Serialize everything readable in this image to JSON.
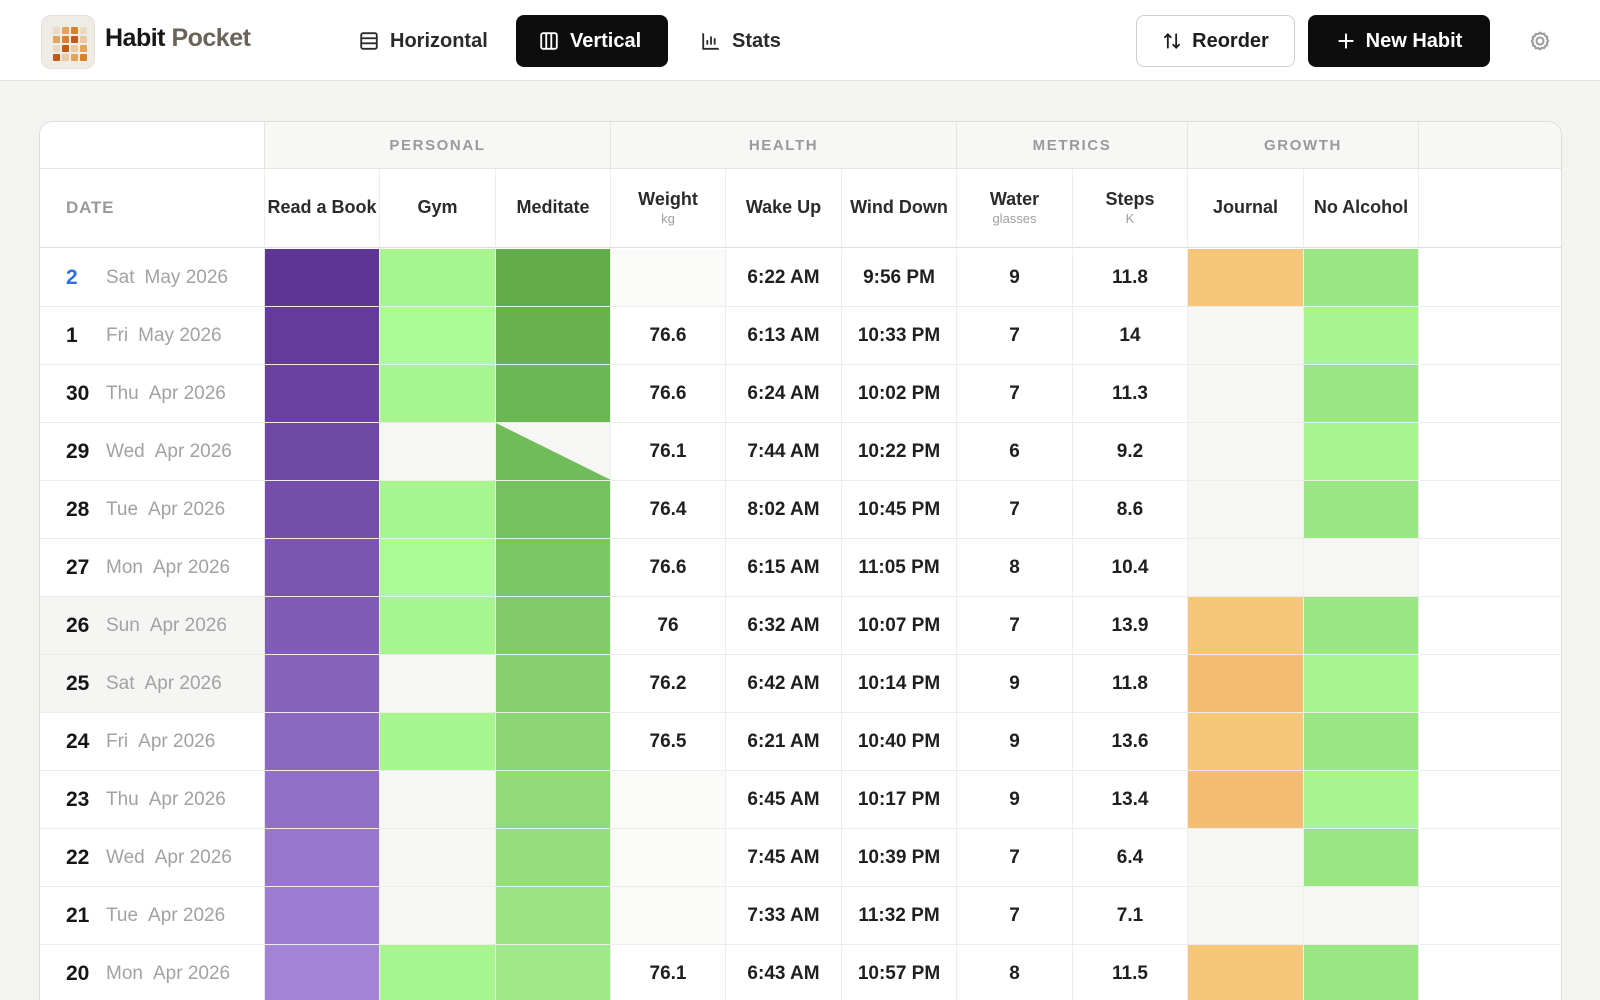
{
  "app": {
    "brand_main": "Habit",
    "brand_sub": "Pocket"
  },
  "nav": {
    "horizontal": "Horizontal",
    "vertical": "Vertical",
    "stats": "Stats",
    "active": "vertical"
  },
  "actions": {
    "reorder": "Reorder",
    "new_habit": "New Habit"
  },
  "icons": {
    "settings": "gear-icon",
    "reorder": "sort-arrows-icon",
    "new": "plus-icon"
  },
  "groups": [
    "",
    "PERSONAL",
    "HEALTH",
    "METRICS",
    "GROWTH"
  ],
  "columns": {
    "date": "DATE",
    "read": "Read a Book",
    "gym": "Gym",
    "meditate": "Meditate",
    "weight": "Weight",
    "weight_unit": "kg",
    "wake": "Wake Up",
    "wind": "Wind Down",
    "water": "Water",
    "water_unit": "glasses",
    "steps": "Steps",
    "steps_unit": "K",
    "journal": "Journal",
    "noalcohol": "No Alcohol"
  },
  "colors": {
    "read": "#6a3ea8",
    "gym": "#a6f58e",
    "meditate": "#6bbd55",
    "journal": "#f6c67a",
    "noalcohol": "#9fe98a",
    "today": "#2f6fe6"
  },
  "rows": [
    {
      "day": "2",
      "weekday": "Sat",
      "month": "May 2026",
      "weekend": true,
      "today": true,
      "read": true,
      "gym": true,
      "meditate": true,
      "weight": "",
      "wake": "6:22 AM",
      "wind": "9:56 PM",
      "water": "9",
      "steps": "11.8",
      "journal": true,
      "noalcohol": true
    },
    {
      "day": "1",
      "weekday": "Fri",
      "month": "May 2026",
      "weekend": false,
      "today": false,
      "read": true,
      "gym": true,
      "meditate": true,
      "weight": "76.6",
      "wake": "6:13 AM",
      "wind": "10:33 PM",
      "water": "7",
      "steps": "14",
      "journal": false,
      "noalcohol": true
    },
    {
      "day": "30",
      "weekday": "Thu",
      "month": "Apr 2026",
      "weekend": false,
      "today": false,
      "read": true,
      "gym": true,
      "meditate": true,
      "weight": "76.6",
      "wake": "6:24 AM",
      "wind": "10:02 PM",
      "water": "7",
      "steps": "11.3",
      "journal": false,
      "noalcohol": true
    },
    {
      "day": "29",
      "weekday": "Wed",
      "month": "Apr 2026",
      "weekend": false,
      "today": false,
      "read": true,
      "gym": false,
      "meditate": "partial",
      "weight": "76.1",
      "wake": "7:44 AM",
      "wind": "10:22 PM",
      "water": "6",
      "steps": "9.2",
      "journal": false,
      "noalcohol": true
    },
    {
      "day": "28",
      "weekday": "Tue",
      "month": "Apr 2026",
      "weekend": false,
      "today": false,
      "read": true,
      "gym": true,
      "meditate": true,
      "weight": "76.4",
      "wake": "8:02 AM",
      "wind": "10:45 PM",
      "water": "7",
      "steps": "8.6",
      "journal": false,
      "noalcohol": true
    },
    {
      "day": "27",
      "weekday": "Mon",
      "month": "Apr 2026",
      "weekend": false,
      "today": false,
      "read": true,
      "gym": true,
      "meditate": true,
      "weight": "76.6",
      "wake": "6:15 AM",
      "wind": "11:05 PM",
      "water": "8",
      "steps": "10.4",
      "journal": false,
      "noalcohol": false
    },
    {
      "day": "26",
      "weekday": "Sun",
      "month": "Apr 2026",
      "weekend": true,
      "today": false,
      "read": true,
      "gym": true,
      "meditate": true,
      "weight": "76",
      "wake": "6:32 AM",
      "wind": "10:07 PM",
      "water": "7",
      "steps": "13.9",
      "journal": true,
      "noalcohol": true
    },
    {
      "day": "25",
      "weekday": "Sat",
      "month": "Apr 2026",
      "weekend": true,
      "today": false,
      "read": true,
      "gym": false,
      "meditate": true,
      "weight": "76.2",
      "wake": "6:42 AM",
      "wind": "10:14 PM",
      "water": "9",
      "steps": "11.8",
      "journal": true,
      "noalcohol": true
    },
    {
      "day": "24",
      "weekday": "Fri",
      "month": "Apr 2026",
      "weekend": false,
      "today": false,
      "read": true,
      "gym": true,
      "meditate": true,
      "weight": "76.5",
      "wake": "6:21 AM",
      "wind": "10:40 PM",
      "water": "9",
      "steps": "13.6",
      "journal": true,
      "noalcohol": true
    },
    {
      "day": "23",
      "weekday": "Thu",
      "month": "Apr 2026",
      "weekend": false,
      "today": false,
      "read": true,
      "gym": false,
      "meditate": true,
      "weight": "",
      "wake": "6:45 AM",
      "wind": "10:17 PM",
      "water": "9",
      "steps": "13.4",
      "journal": true,
      "noalcohol": true
    },
    {
      "day": "22",
      "weekday": "Wed",
      "month": "Apr 2026",
      "weekend": false,
      "today": false,
      "read": true,
      "gym": false,
      "meditate": true,
      "weight": "",
      "wake": "7:45 AM",
      "wind": "10:39 PM",
      "water": "7",
      "steps": "6.4",
      "journal": false,
      "noalcohol": true
    },
    {
      "day": "21",
      "weekday": "Tue",
      "month": "Apr 2026",
      "weekend": false,
      "today": false,
      "read": true,
      "gym": false,
      "meditate": true,
      "weight": "",
      "wake": "7:33 AM",
      "wind": "11:32 PM",
      "water": "7",
      "steps": "7.1",
      "journal": false,
      "noalcohol": false
    },
    {
      "day": "20",
      "weekday": "Mon",
      "month": "Apr 2026",
      "weekend": false,
      "today": false,
      "read": true,
      "gym": true,
      "meditate": true,
      "weight": "76.1",
      "wake": "6:43 AM",
      "wind": "10:57 PM",
      "water": "8",
      "steps": "11.5",
      "journal": true,
      "noalcohol": true
    }
  ]
}
